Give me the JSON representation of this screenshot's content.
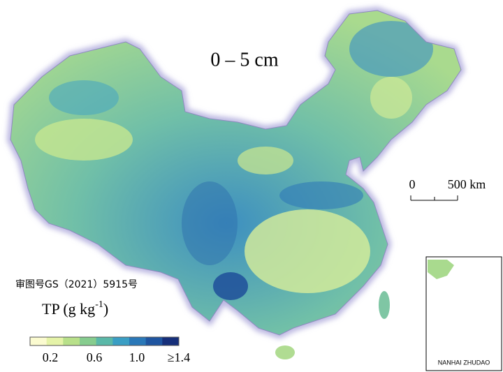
{
  "map": {
    "title": "0 – 5 cm",
    "approval": "审图号GS（2021）5915号",
    "scale_bar": {
      "start": "0",
      "end": "500 km"
    },
    "legend": {
      "title_main": "TP (g kg",
      "title_sup": "-1",
      "title_end": ")",
      "ticks": [
        "0.2",
        "0.6",
        "1.0",
        "≥1.4"
      ],
      "colors": [
        "#fbfbd0",
        "#e5f3a8",
        "#b8e08a",
        "#86cc8e",
        "#5ab8a8",
        "#3a9ec4",
        "#2a78b8",
        "#1f55a0",
        "#162f7a"
      ]
    },
    "inset": {
      "label": "NANHAI ZHUDAO"
    }
  }
}
